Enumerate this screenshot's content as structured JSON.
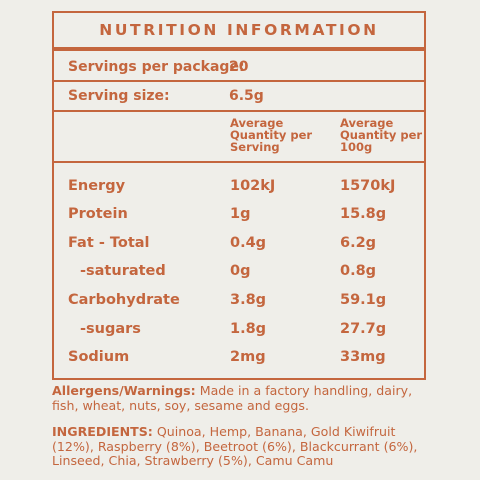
{
  "title": "NUTRITION INFORMATION",
  "servings": {
    "label": "Servings per package:",
    "value": "20"
  },
  "serving_size": {
    "label": "Serving size:",
    "value": "6.5g"
  },
  "col_headers": [
    "Average Quantity per Serving",
    "Average Quantity per 100g"
  ],
  "rows": [
    {
      "label": "Energy",
      "serving": "102kJ",
      "per100": "1570kJ"
    },
    {
      "label": "Protein",
      "serving": "1g",
      "per100": "15.8g"
    },
    {
      "label": "Fat - Total",
      "serving": "0.4g",
      "per100": "6.2g"
    },
    {
      "label": "-saturated",
      "serving": "0g",
      "per100": "0.8g"
    },
    {
      "label": "Carbohydrate",
      "serving": "3.8g",
      "per100": "59.1g"
    },
    {
      "label": "-sugars",
      "serving": "1.8g",
      "per100": "27.7g"
    },
    {
      "label": "Sodium",
      "serving": "2mg",
      "per100": "33mg"
    }
  ],
  "allergens": {
    "label": "Allergens/Warnings:",
    "text": " Made in a factory handling, dairy, fish, wheat, nuts, soy, sesame and eggs."
  },
  "ingredients": {
    "label": "INGREDIENTS:",
    "text": " Quinoa, Hemp, Banana, Gold Kiwifruit (12%), Raspberry (8%), Beetroot (6%), Blackcurrant (6%), Linseed, Chia, Strawberry (5%), Camu Camu"
  },
  "colors": {
    "accent": "#c4663e",
    "background": "#efeee9"
  }
}
